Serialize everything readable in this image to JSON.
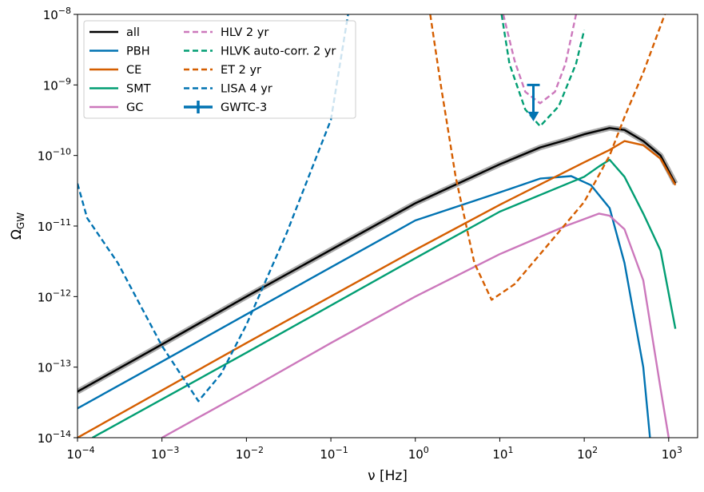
{
  "chart_data": {
    "type": "line",
    "xlabel": "ν [Hz]",
    "ylabel": "Ω",
    "ylabel_sub": "GW",
    "xscale": "log",
    "yscale": "log",
    "legend": "upper left",
    "legend_columns": 2,
    "xlim": [
      0.0001,
      2200
    ],
    "ylim": [
      1e-14,
      1e-08
    ],
    "xticks": [
      {
        "value": 0.0001,
        "label": "10",
        "exponent": "−4"
      },
      {
        "value": 0.001,
        "label": "10",
        "exponent": "−3"
      },
      {
        "value": 0.01,
        "label": "10",
        "exponent": "−2"
      },
      {
        "value": 0.1,
        "label": "10",
        "exponent": "−1"
      },
      {
        "value": 1,
        "label": "10",
        "exponent": "0"
      },
      {
        "value": 10,
        "label": "10",
        "exponent": "1"
      },
      {
        "value": 100,
        "label": "10",
        "exponent": "2"
      },
      {
        "value": 1000,
        "label": "10",
        "exponent": "3"
      }
    ],
    "yticks": [
      {
        "value": 1e-14,
        "label": "10",
        "exponent": "−14"
      },
      {
        "value": 1e-13,
        "label": "10",
        "exponent": "−13"
      },
      {
        "value": 1e-12,
        "label": "10",
        "exponent": "−12"
      },
      {
        "value": 1e-11,
        "label": "10",
        "exponent": "−11"
      },
      {
        "value": 1e-10,
        "label": "10",
        "exponent": "−10"
      },
      {
        "value": 1e-09,
        "label": "10",
        "exponent": "−9"
      },
      {
        "value": 1e-08,
        "label": "10",
        "exponent": "−8"
      }
    ],
    "series": [
      {
        "name": "all",
        "color": "#000000",
        "band_color": "#aaaaaa",
        "style": "solid",
        "x": [
          0.0001,
          0.001,
          0.01,
          0.1,
          1,
          10,
          30,
          60,
          100,
          200,
          300,
          500,
          800,
          1200
        ],
        "values": [
          4.5e-14,
          2.1e-13,
          1e-12,
          4.6e-12,
          2.1e-11,
          7.5e-11,
          1.3e-10,
          1.65e-10,
          2e-10,
          2.45e-10,
          2.3e-10,
          1.6e-10,
          1e-10,
          4e-11
        ]
      },
      {
        "name": "PBH",
        "color": "#0173b2",
        "style": "solid",
        "x": [
          0.0001,
          0.001,
          0.01,
          0.1,
          1,
          10,
          30,
          70,
          120,
          200,
          300,
          500,
          600
        ],
        "values": [
          2.6e-14,
          1.2e-13,
          5.6e-13,
          2.6e-12,
          1.2e-11,
          3e-11,
          4.7e-11,
          5.1e-11,
          3.8e-11,
          1.8e-11,
          3e-12,
          1e-13,
          1e-14
        ]
      },
      {
        "name": "CE",
        "color": "#d55e00",
        "style": "solid",
        "x": [
          0.0001,
          0.01,
          1,
          10,
          100,
          200,
          300,
          500,
          800,
          1200
        ],
        "values": [
          1e-14,
          2.2e-13,
          4.6e-12,
          2e-11,
          8e-11,
          1.2e-10,
          1.6e-10,
          1.4e-10,
          9e-11,
          3.8e-11
        ]
      },
      {
        "name": "SMT",
        "color": "#029e73",
        "style": "solid",
        "x": [
          0.00015,
          0.01,
          1,
          10,
          100,
          150,
          200,
          300,
          500,
          800,
          1200
        ],
        "values": [
          1e-14,
          1.6e-13,
          3.5e-12,
          1.6e-11,
          5e-11,
          7e-11,
          8.7e-11,
          5e-11,
          1.5e-11,
          4.5e-12,
          3.5e-13
        ]
      },
      {
        "name": "GC",
        "color": "#cc78bc",
        "style": "solid",
        "x": [
          0.001,
          0.01,
          0.1,
          1,
          10,
          60,
          150,
          200,
          300,
          500,
          800,
          1000
        ],
        "values": [
          1e-14,
          4.6e-14,
          2.2e-13,
          1e-12,
          4e-12,
          1e-11,
          1.5e-11,
          1.4e-11,
          9e-12,
          1.7e-12,
          5e-14,
          1e-14
        ]
      },
      {
        "name": "HLV 2 yr",
        "color": "#cc78bc",
        "style": "dashed",
        "x": [
          11,
          15,
          20,
          30,
          45,
          60,
          80
        ],
        "values": [
          1e-08,
          2.2e-09,
          8e-10,
          5.5e-10,
          8e-10,
          2e-09,
          1e-08
        ]
      },
      {
        "name": "HLVK auto-corr. 2 yr",
        "color": "#029e73",
        "style": "dashed",
        "x": [
          10.5,
          13,
          20,
          30,
          50,
          80,
          100
        ],
        "values": [
          1e-08,
          2e-09,
          4.5e-10,
          2.6e-10,
          5e-10,
          2e-09,
          6e-09
        ]
      },
      {
        "name": "ET 2 yr",
        "color": "#d55e00",
        "style": "dashed",
        "x": [
          1.5,
          2,
          3,
          5,
          8,
          15,
          30,
          100,
          200,
          300,
          500,
          900
        ],
        "values": [
          1e-08,
          1e-09,
          5e-11,
          3e-12,
          9e-13,
          1.5e-12,
          4e-12,
          2.2e-11,
          1e-10,
          3.5e-10,
          1.5e-09,
          1e-08
        ]
      },
      {
        "name": "LISA 4 yr",
        "color": "#0173b2",
        "style": "dashed",
        "x": [
          0.0001,
          0.00013,
          0.0003,
          0.001,
          0.0027,
          0.005,
          0.01,
          0.03,
          0.1,
          0.16
        ],
        "values": [
          4e-11,
          1.3e-11,
          3e-12,
          2e-13,
          3.3e-14,
          8e-14,
          4e-13,
          8e-12,
          3.2e-10,
          1e-08
        ]
      },
      {
        "name": "GWTC-3",
        "color": "#0173b2",
        "style": "upper-limit",
        "x": [
          25
        ],
        "values": [
          1e-09
        ],
        "lower": [
          3.3e-10
        ]
      }
    ]
  }
}
